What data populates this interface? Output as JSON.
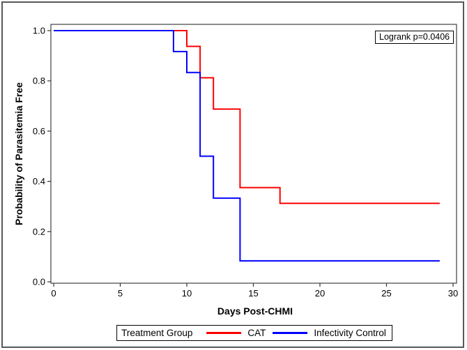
{
  "figure": {
    "background": "#ffffff",
    "border_color": "#585858"
  },
  "chart_data": {
    "type": "line",
    "subtype": "kaplan-meier-step",
    "title": "",
    "xlabel": "Days Post-CHMI",
    "ylabel": "Probability of Parasitemia Free",
    "xlim": [
      0,
      30
    ],
    "ylim": [
      0.0,
      1.0
    ],
    "grid": false,
    "x_ticks": [
      0,
      5,
      10,
      15,
      20,
      25,
      30
    ],
    "x_tick_labels": [
      "0",
      "5",
      "10",
      "15",
      "20",
      "25",
      "30"
    ],
    "y_ticks": [
      0.0,
      0.2,
      0.4,
      0.6,
      0.8,
      1.0
    ],
    "y_tick_labels": [
      "0.0",
      "0.2",
      "0.4",
      "0.6",
      "0.8",
      "1.0"
    ],
    "annotation": {
      "text": "Logrank p=0.0406",
      "position": "top-right"
    },
    "legend": {
      "title": "Treatment Group",
      "position": "bottom",
      "entries": [
        {
          "name": "CAT",
          "color": "#ff0000"
        },
        {
          "name": "Infectivity Control",
          "color": "#0000ff"
        }
      ]
    },
    "series": [
      {
        "name": "CAT",
        "color": "#ff0000",
        "points": [
          [
            0,
            1.0
          ],
          [
            10,
            1.0
          ],
          [
            10,
            0.9375
          ],
          [
            11,
            0.9375
          ],
          [
            11,
            0.8125
          ],
          [
            12,
            0.8125
          ],
          [
            12,
            0.6875
          ],
          [
            14,
            0.6875
          ],
          [
            14,
            0.375
          ],
          [
            17,
            0.375
          ],
          [
            17,
            0.3125
          ],
          [
            29,
            0.3125
          ]
        ]
      },
      {
        "name": "Infectivity Control",
        "color": "#0000ff",
        "points": [
          [
            0,
            1.0
          ],
          [
            9,
            1.0
          ],
          [
            9,
            0.9167
          ],
          [
            10,
            0.9167
          ],
          [
            10,
            0.8333
          ],
          [
            11,
            0.8333
          ],
          [
            11,
            0.5
          ],
          [
            12,
            0.5
          ],
          [
            12,
            0.3333
          ],
          [
            14,
            0.3333
          ],
          [
            14,
            0.0833
          ],
          [
            29,
            0.0833
          ]
        ]
      }
    ]
  }
}
